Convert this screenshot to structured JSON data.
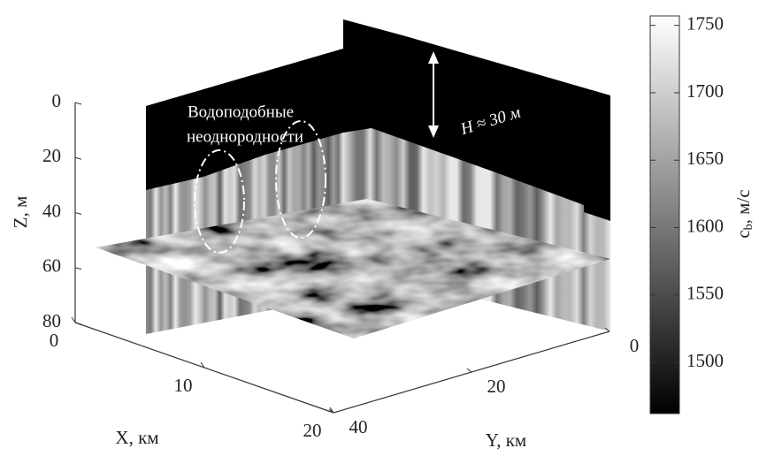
{
  "chart_data": {
    "type": "slice3d",
    "xlabel": "X, км",
    "ylabel": "Y, км",
    "zlabel": "Z, м",
    "xlim": [
      0,
      20
    ],
    "ylim": [
      0,
      40
    ],
    "zlim": [
      0,
      80
    ],
    "xticks": [
      0,
      10,
      20
    ],
    "yticks": [
      0,
      20,
      40
    ],
    "zticks": [
      0,
      20,
      40,
      60,
      80
    ],
    "colorbar": {
      "label": {
        "symbol": "c",
        "subscript": "b",
        "unit": ", м/с"
      },
      "clim": [
        1462,
        1757
      ],
      "ticks": [
        1500,
        1550,
        1600,
        1650,
        1700,
        1750
      ]
    },
    "annotations": {
      "heterogeneities": [
        "Водоподобные",
        "неоднородности"
      ],
      "depth": "H ≈ 30 м"
    }
  }
}
